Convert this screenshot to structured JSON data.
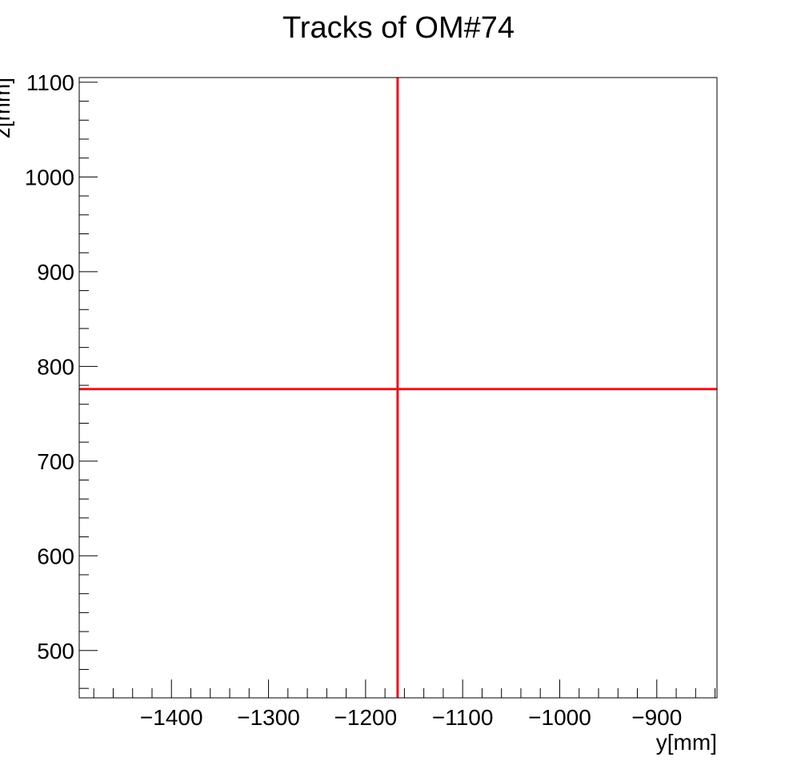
{
  "chart_data": {
    "type": "line",
    "title": "Tracks of OM#74",
    "xlabel": "y[mm]",
    "ylabel": "z[mm]",
    "xlim": [
      -1495,
      -838
    ],
    "ylim": [
      450,
      1105
    ],
    "x_major_ticks": [
      -1400,
      -1300,
      -1200,
      -1100,
      -1000,
      -900
    ],
    "y_major_ticks": [
      500,
      600,
      700,
      800,
      900,
      1000,
      1100
    ],
    "x_tick_labels": [
      "−1400",
      "−1300",
      "−1200",
      "−1100",
      "−1000",
      "−900"
    ],
    "y_tick_labels": [
      "500",
      "600",
      "700",
      "800",
      "900",
      "1000",
      "1100"
    ],
    "grid": false,
    "line_color": "#e8141c",
    "series": [
      {
        "x": [
          -1495,
          -838
        ],
        "y": [
          776,
          776
        ]
      },
      {
        "x": [
          -1167,
          -1167
        ],
        "y": [
          450,
          1105
        ]
      }
    ]
  }
}
